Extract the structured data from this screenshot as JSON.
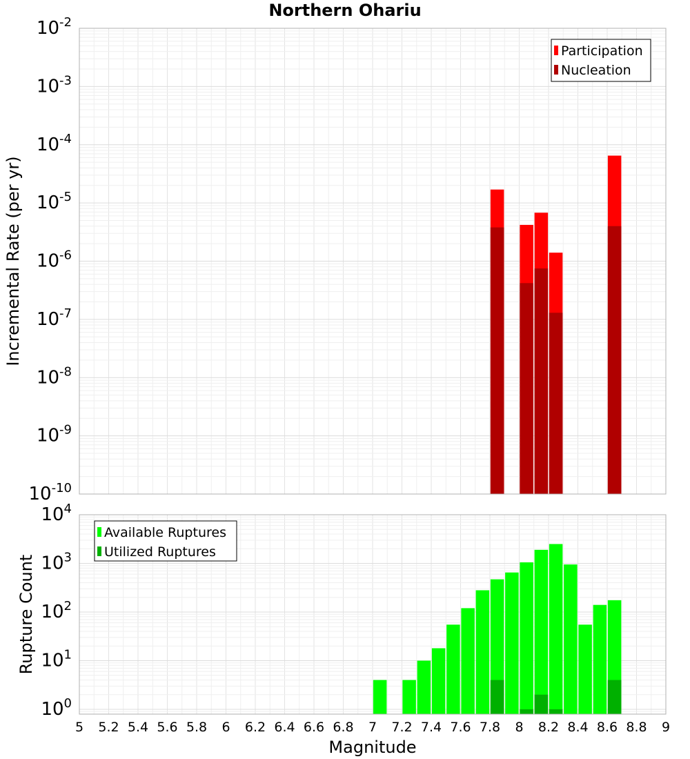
{
  "title": "Northern Ohariu",
  "chart_data": [
    {
      "type": "bar",
      "scale": "log",
      "ylabel": "Incremental Rate (per yr)",
      "xlim": [
        5,
        9
      ],
      "ylim_exp": [
        -10,
        -2
      ],
      "y_ticks_exp": [
        "-10",
        "-9",
        "-8",
        "-7",
        "-6",
        "-5",
        "-4",
        "-3",
        "-2"
      ],
      "legend": {
        "position": "top-right"
      },
      "series": [
        {
          "name": "Participation",
          "color": "#ff0000",
          "points": [
            {
              "x": 7.85,
              "y": 1.7e-05
            },
            {
              "x": 8.05,
              "y": 4.2e-06
            },
            {
              "x": 8.15,
              "y": 6.8e-06
            },
            {
              "x": 8.25,
              "y": 1.4e-06
            },
            {
              "x": 8.65,
              "y": 6.5e-05
            }
          ]
        },
        {
          "name": "Nucleation",
          "color": "#b00000",
          "points": [
            {
              "x": 7.85,
              "y": 3.8e-06
            },
            {
              "x": 8.05,
              "y": 4.2e-07
            },
            {
              "x": 8.15,
              "y": 7.5e-07
            },
            {
              "x": 8.25,
              "y": 1.3e-07
            },
            {
              "x": 8.65,
              "y": 4e-06
            }
          ]
        }
      ]
    },
    {
      "type": "bar",
      "scale": "log",
      "xlabel": "Magnitude",
      "ylabel": "Rupture Count",
      "xlim": [
        5,
        9
      ],
      "ylim_exp": [
        -0.1,
        4
      ],
      "y_ticks_exp": [
        "0",
        "1",
        "2",
        "3",
        "4"
      ],
      "x_ticks": [
        "5",
        "5.2",
        "5.4",
        "5.6",
        "5.8",
        "6",
        "6.2",
        "6.4",
        "6.6",
        "6.8",
        "7",
        "7.2",
        "7.4",
        "7.6",
        "7.8",
        "8",
        "8.2",
        "8.4",
        "8.6",
        "8.8",
        "9"
      ],
      "legend": {
        "position": "top-left"
      },
      "series": [
        {
          "name": "Available Ruptures",
          "color": "#00ff00",
          "points": [
            {
              "x": 7.05,
              "y": 4
            },
            {
              "x": 7.25,
              "y": 4
            },
            {
              "x": 7.35,
              "y": 10
            },
            {
              "x": 7.45,
              "y": 18
            },
            {
              "x": 7.55,
              "y": 55
            },
            {
              "x": 7.65,
              "y": 120
            },
            {
              "x": 7.75,
              "y": 280
            },
            {
              "x": 7.85,
              "y": 470
            },
            {
              "x": 7.95,
              "y": 650
            },
            {
              "x": 8.05,
              "y": 1050
            },
            {
              "x": 8.15,
              "y": 1900
            },
            {
              "x": 8.25,
              "y": 2500
            },
            {
              "x": 8.35,
              "y": 950
            },
            {
              "x": 8.45,
              "y": 55
            },
            {
              "x": 8.55,
              "y": 140
            },
            {
              "x": 8.65,
              "y": 175
            }
          ]
        },
        {
          "name": "Utilized Ruptures",
          "color": "#00b000",
          "points": [
            {
              "x": 7.85,
              "y": 4
            },
            {
              "x": 8.05,
              "y": 1
            },
            {
              "x": 8.15,
              "y": 2
            },
            {
              "x": 8.25,
              "y": 1
            },
            {
              "x": 8.65,
              "y": 4
            }
          ]
        }
      ]
    }
  ]
}
